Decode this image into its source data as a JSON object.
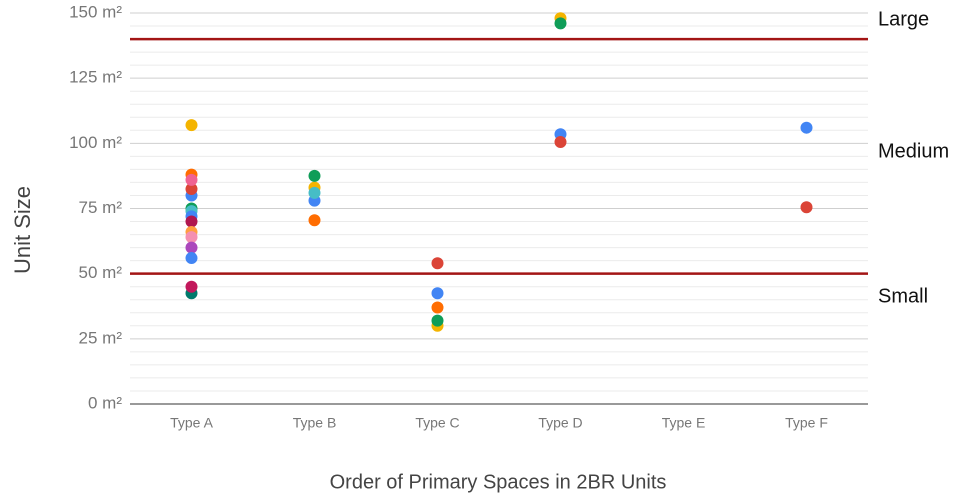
{
  "chart_data": {
    "type": "scatter",
    "x_label": "Order of Primary Spaces in 2BR Units",
    "y_label": "Unit Size",
    "categories": [
      "Type A",
      "Type B",
      "Type C",
      "Type D",
      "Type E",
      "Type F"
    ],
    "ylim": [
      0,
      150
    ],
    "yticks": [
      {
        "value": 0,
        "label": "0 m²"
      },
      {
        "value": 25,
        "label": "25 m²"
      },
      {
        "value": 50,
        "label": "50 m²"
      },
      {
        "value": 75,
        "label": "75 m²"
      },
      {
        "value": 100,
        "label": "100 m²"
      },
      {
        "value": 125,
        "label": "125 m²"
      },
      {
        "value": 150,
        "label": "150 m²"
      }
    ],
    "minor_yticks": [
      5,
      10,
      15,
      20,
      30,
      35,
      40,
      45,
      55,
      60,
      65,
      70,
      80,
      85,
      90,
      95,
      105,
      110,
      115,
      120,
      130,
      135,
      140,
      145
    ],
    "grid": true,
    "reference_lines": [
      {
        "value": 140,
        "color": "#a31515"
      },
      {
        "value": 50,
        "color": "#a31515"
      }
    ],
    "annotations": [
      "Large",
      "Medium",
      "Small"
    ],
    "series": [
      {
        "color": "#4285f4",
        "values": [
          80,
          78,
          42.5,
          103.5,
          null,
          106
        ]
      },
      {
        "color": "#db4437",
        "values": [
          82.5,
          null,
          54,
          100.5,
          null,
          75.5
        ]
      },
      {
        "color": "#f4b400",
        "values": [
          107,
          83,
          30,
          148,
          null,
          null
        ]
      },
      {
        "color": "#0f9d58",
        "values": [
          75,
          87.5,
          32,
          146,
          null,
          null
        ]
      },
      {
        "color": "#ff6d01",
        "values": [
          88,
          70.5,
          37,
          null,
          null,
          null
        ]
      },
      {
        "color": "#46bdc6",
        "values": [
          74,
          81,
          null,
          null,
          null,
          null
        ]
      },
      {
        "color": "#f06292",
        "values": [
          86,
          null,
          null,
          null,
          null,
          null
        ]
      },
      {
        "color": "#4285f4",
        "values": [
          72,
          null,
          null,
          null,
          null,
          null
        ]
      },
      {
        "color": "#b0174f",
        "values": [
          70,
          null,
          null,
          null,
          null,
          null
        ]
      },
      {
        "color": "#ff9e40",
        "values": [
          66,
          null,
          null,
          null,
          null,
          null
        ]
      },
      {
        "color": "#f48fb1",
        "values": [
          64,
          null,
          null,
          null,
          null,
          null
        ]
      },
      {
        "color": "#ab47bc",
        "values": [
          60,
          null,
          null,
          null,
          null,
          null
        ]
      },
      {
        "color": "#4285f4",
        "values": [
          56,
          null,
          null,
          null,
          null,
          null
        ]
      },
      {
        "color": "#00796b",
        "values": [
          42.5,
          null,
          null,
          null,
          null,
          null
        ]
      },
      {
        "color": "#c2185b",
        "values": [
          45,
          null,
          null,
          null,
          null,
          null
        ]
      }
    ]
  }
}
